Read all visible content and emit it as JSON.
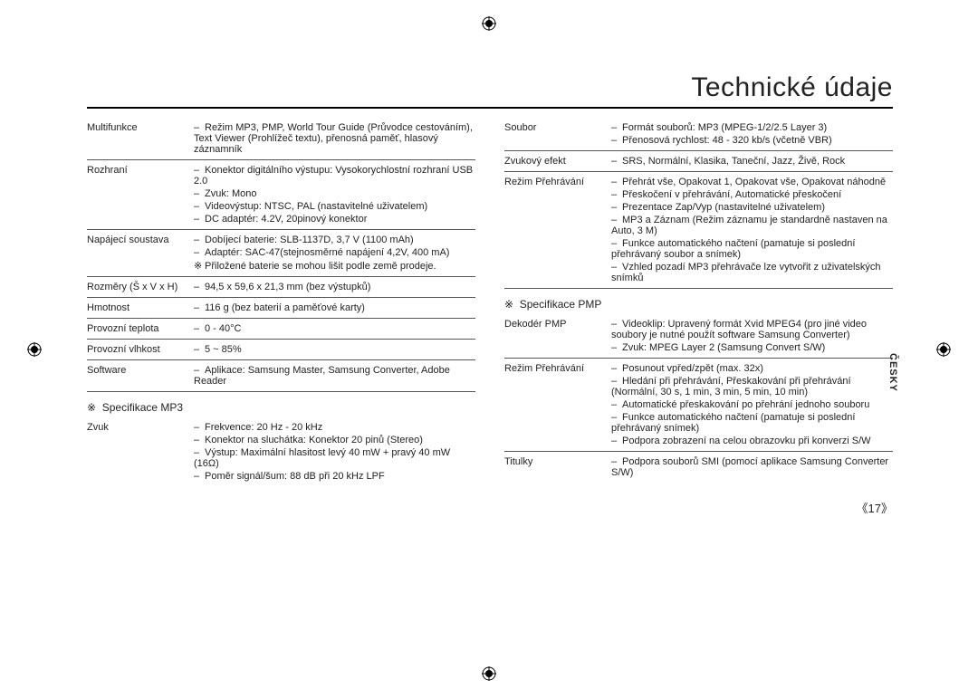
{
  "title": "Technické údaje",
  "language_tab": "ČESKY",
  "page_number": "《17》",
  "left": {
    "rows": [
      {
        "label": "Multifunkce",
        "vals": [
          "Režim MP3, PMP, World Tour Guide (Průvodce cestováním), Text Viewer (Prohlížeč textu), přenosná paměť, hlasový záznamník"
        ]
      },
      {
        "label": "Rozhraní",
        "vals": [
          "Konektor digitálního výstupu: Vysokorychlostní rozhraní USB 2.0",
          "Zvuk: Mono",
          "Videovýstup: NTSC, PAL (nastavitelné uživatelem)",
          "DC adaptér: 4.2V, 20pinový konektor"
        ]
      },
      {
        "label": "Napájecí soustava",
        "vals": [
          "Dobíjecí baterie: SLB-1137D, 3,7 V (1100 mAh)",
          "Adaptér: SAC-47(stejnosměrné napájení 4,2V, 400 mA)"
        ],
        "note": "Přiložené baterie se mohou lišit podle země prodeje."
      },
      {
        "label": "Rozměry (Š x V x H)",
        "vals": [
          "94,5 x 59,6 x 21,3 mm (bez výstupků)"
        ]
      },
      {
        "label": "Hmotnost",
        "vals": [
          "116 g (bez baterií a paměťové karty)"
        ]
      },
      {
        "label": "Provozní teplota",
        "vals": [
          "0 - 40°C"
        ]
      },
      {
        "label": "Provozní vlhkost",
        "vals": [
          "5 ~ 85%"
        ]
      },
      {
        "label": "Software",
        "vals": [
          "Aplikace: Samsung Master, Samsung Converter, Adobe Reader"
        ]
      }
    ],
    "subhead": "Specifikace MP3",
    "rows2": [
      {
        "label": "Zvuk",
        "vals": [
          "Frekvence: 20 Hz - 20 kHz",
          "Konektor na sluchátka: Konektor 20 pinů (Stereo)",
          "Výstup: Maximální hlasitost levý 40 mW + pravý 40 mW (16Ω)",
          "Poměr signál/šum: 88 dB při 20 kHz LPF"
        ],
        "noborder": true
      }
    ]
  },
  "right": {
    "rows": [
      {
        "label": "Soubor",
        "vals": [
          "Formát souborů: MP3 (MPEG-1/2/2.5 Layer 3)",
          "Přenosová rychlost: 48 - 320 kb/s (včetně VBR)"
        ]
      },
      {
        "label": "Zvukový efekt",
        "vals": [
          "SRS, Normální, Klasika, Taneční, Jazz, Živě, Rock"
        ]
      },
      {
        "label": "Režim Přehrávání",
        "vals": [
          "Přehrát vše, Opakovat 1, Opakovat vše, Opakovat náhodně",
          "Přeskočení v přehrávání, Automatické přeskočení",
          "Prezentace Zap/Vyp (nastavitelné uživatelem)",
          "MP3 a Záznam (Režim záznamu je standardně nastaven na Auto, 3 M)",
          "Funkce automatického načtení (pamatuje si poslední přehrávaný soubor a snímek)",
          "Vzhled pozadí MP3 přehrávače lze vytvořit z uživatelských snímků"
        ]
      }
    ],
    "subhead": "Specifikace PMP",
    "rows2": [
      {
        "label": "Dekodér PMP",
        "vals": [
          "Videoklip: Upravený formát Xvid MPEG4 (pro jiné video soubory je nutné použít software Samsung Converter)",
          "Zvuk: MPEG Layer 2 (Samsung Convert S/W)"
        ]
      },
      {
        "label": "Režim Přehrávání",
        "vals": [
          "Posunout vpřed/zpět (max. 32x)",
          "Hledání při přehrávání, Přeskakování při přehrávání (Normální, 30 s, 1 min, 3 min, 5 min, 10 min)",
          "Automatické přeskakování po přehrání jednoho souboru",
          "Funkce automatického načtení (pamatuje si poslední přehrávaný snímek)",
          "Podpora zobrazení na celou obrazovku při konverzi S/W"
        ]
      },
      {
        "label": "Titulky",
        "vals": [
          "Podpora souborů SMI (pomocí aplikace Samsung Converter S/W)"
        ],
        "noborder": true
      }
    ]
  }
}
